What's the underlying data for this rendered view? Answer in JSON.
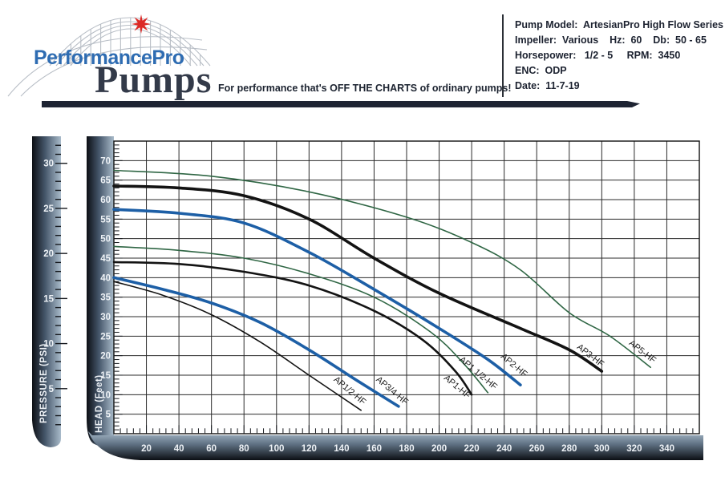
{
  "header": {
    "logo": {
      "line1": "PerformancePro",
      "line2": "Pumps"
    },
    "tagline": "For performance that's OFF THE CHARTS of ordinary pumps!",
    "info_lines": [
      "Pump Model:  ArtesianPro High Flow Series",
      "Impeller:  Various    Hz:  60    Db:  50 - 65",
      "Horsepower:   1/2 - 5     RPM:  3450",
      "ENC:  ODP",
      "Date:  11-7-19"
    ]
  },
  "chart_data": {
    "type": "line",
    "title": "",
    "xlabel": "",
    "ylabel_inner": "HEAD (Feet)",
    "ylabel_outer": "PRESSURE (PSI)",
    "grid": true,
    "x_axis": {
      "min": 0,
      "max": 360,
      "major": 20,
      "minor": 4,
      "tick_labels": [
        20,
        40,
        60,
        80,
        100,
        120,
        140,
        160,
        180,
        200,
        220,
        240,
        260,
        280,
        300,
        320,
        340
      ]
    },
    "y_axis": {
      "min": 0,
      "max": 75,
      "major": 5,
      "minor": 1,
      "tick_labels": [
        5,
        10,
        15,
        20,
        25,
        30,
        35,
        40,
        45,
        50,
        55,
        60,
        65,
        70
      ]
    },
    "y_axis_outer": {
      "units": "PSI",
      "psi_per_foot": 2.31,
      "min": 0,
      "max": 32,
      "tick_labels": [
        5,
        10,
        15,
        20,
        25,
        30
      ]
    },
    "colors": {
      "black": "#131313",
      "blue": "#1d5fa6",
      "green": "#2f6644",
      "bar_light": "#a9bbca",
      "bar_dark": "#0c0f14",
      "brand_blue": "#2e6cb2",
      "brand_dark": "#333a49",
      "star_red": "#dc2a26",
      "divider_navy": "#1e2433"
    },
    "series": [
      {
        "name": "AP1/2-HF",
        "color": "#131313",
        "width": 1.6,
        "points": [
          [
            0,
            39
          ],
          [
            30,
            35.5
          ],
          [
            60,
            30.5
          ],
          [
            90,
            23.5
          ],
          [
            120,
            15
          ],
          [
            152,
            6
          ]
        ],
        "label_at": [
          144,
          10.5
        ],
        "label_rot": 40
      },
      {
        "name": "AP3/4-HF",
        "color": "#1d5fa6",
        "width": 3.6,
        "points": [
          [
            0,
            40
          ],
          [
            30,
            37
          ],
          [
            60,
            33.5
          ],
          [
            90,
            28.5
          ],
          [
            120,
            21.5
          ],
          [
            150,
            13.5
          ],
          [
            175,
            7
          ]
        ],
        "label_at": [
          170,
          10.5
        ],
        "label_rot": 40
      },
      {
        "name": "AP1-HF",
        "color": "#131313",
        "width": 2.6,
        "points": [
          [
            0,
            44
          ],
          [
            40,
            43.5
          ],
          [
            80,
            41.5
          ],
          [
            120,
            38
          ],
          [
            160,
            31.5
          ],
          [
            190,
            24
          ],
          [
            210,
            16
          ],
          [
            220,
            10
          ]
        ],
        "label_at": [
          210,
          11.5
        ],
        "label_rot": 40
      },
      {
        "name": "AP1 1/2-HF",
        "color": "#2f6644",
        "width": 1.6,
        "points": [
          [
            0,
            48
          ],
          [
            40,
            47
          ],
          [
            80,
            45
          ],
          [
            120,
            41
          ],
          [
            160,
            35
          ],
          [
            195,
            26
          ],
          [
            215,
            18
          ],
          [
            230,
            10.5
          ]
        ],
        "label_at": [
          223,
          15
        ],
        "label_rot": 40
      },
      {
        "name": "AP2-HF",
        "color": "#1d5fa6",
        "width": 3.6,
        "points": [
          [
            0,
            57.5
          ],
          [
            40,
            56.5
          ],
          [
            80,
            54
          ],
          [
            120,
            46.5
          ],
          [
            160,
            37
          ],
          [
            200,
            27
          ],
          [
            230,
            19
          ],
          [
            250,
            12.5
          ]
        ],
        "label_at": [
          245,
          17
        ],
        "label_rot": 40
      },
      {
        "name": "AP3-HF",
        "color": "#131313",
        "width": 3.6,
        "points": [
          [
            0,
            63.5
          ],
          [
            40,
            63
          ],
          [
            80,
            61
          ],
          [
            120,
            55
          ],
          [
            160,
            45
          ],
          [
            200,
            36
          ],
          [
            250,
            27
          ],
          [
            280,
            21.5
          ],
          [
            300,
            16
          ]
        ],
        "label_at": [
          292,
          19.5
        ],
        "label_rot": 38
      },
      {
        "name": "AP5-HF",
        "color": "#2f6644",
        "width": 1.6,
        "points": [
          [
            0,
            67.5
          ],
          [
            60,
            66
          ],
          [
            120,
            62
          ],
          [
            180,
            55.5
          ],
          [
            220,
            49
          ],
          [
            250,
            42
          ],
          [
            280,
            31
          ],
          [
            305,
            25
          ],
          [
            330,
            17
          ]
        ],
        "label_at": [
          324,
          20.5
        ],
        "label_rot": 38
      }
    ]
  }
}
